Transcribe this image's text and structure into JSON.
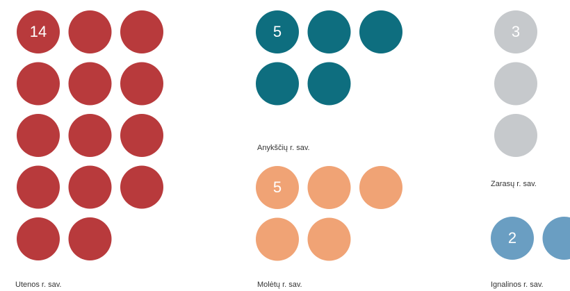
{
  "chart_data": {
    "type": "unit",
    "categories": [
      "Utenos r. sav.",
      "Anykščių r. sav.",
      "Molėtų r. sav.",
      "Zarasų r. sav.",
      "Ignalinos r. sav."
    ],
    "values": [
      14,
      5,
      5,
      3,
      2
    ],
    "colors": [
      "#b83a3c",
      "#0e6e7f",
      "#f0a375",
      "#c6c9cc",
      "#6a9ec2"
    ]
  }
}
